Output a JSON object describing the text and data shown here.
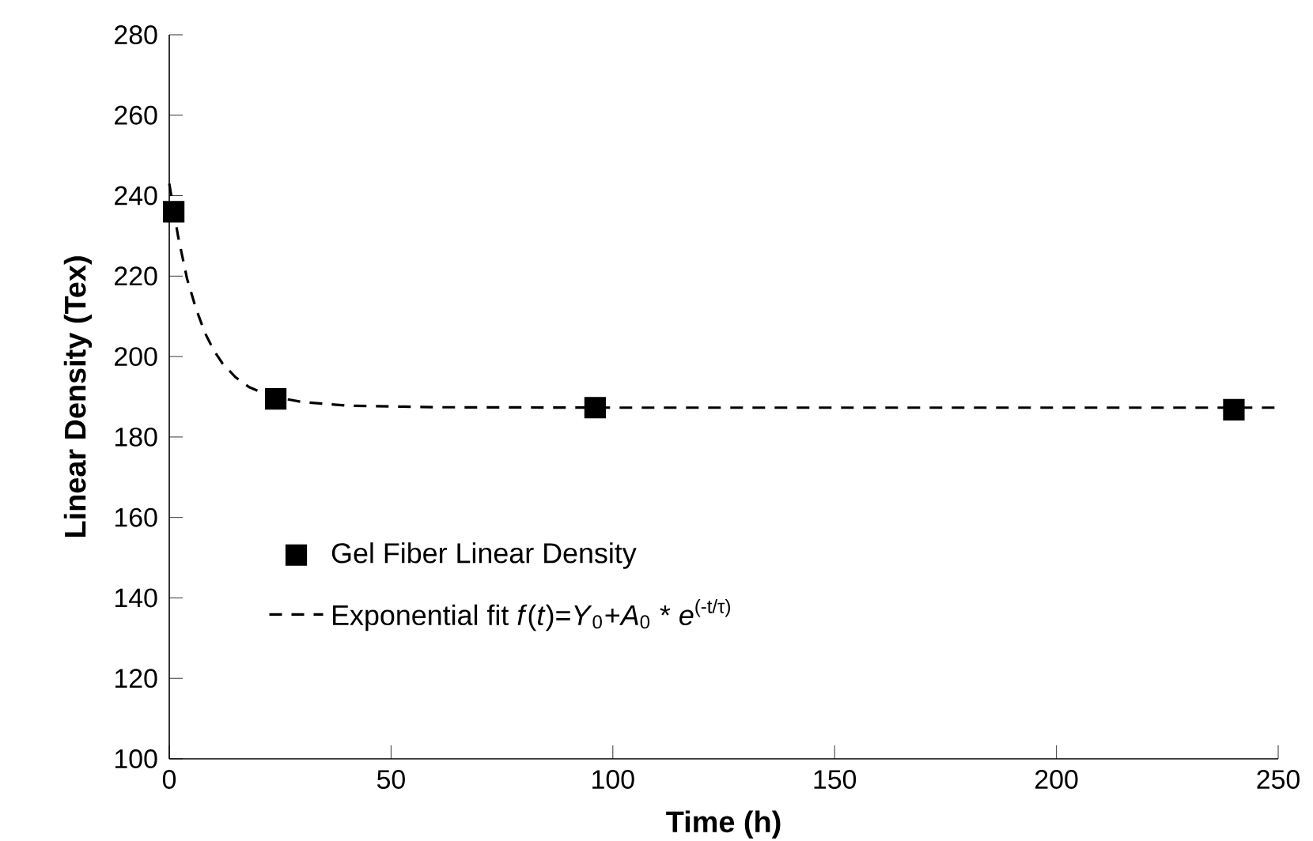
{
  "chart_data": {
    "type": "scatter",
    "xlabel": "Time (h)",
    "ylabel": "Linear Density (Tex)",
    "series": [
      {
        "name": "Gel Fiber Linear Density",
        "color": "#000000",
        "marker": "square",
        "x": [
          1,
          24,
          96,
          240
        ],
        "values": [
          236,
          189.5,
          187.3,
          186.8
        ]
      },
      {
        "name": "Exponential fit  *f*(*t*)=*Y*$_{0}$+*A*$_{0}$ * *e*$^{(-t/τ)}$",
        "type": "line",
        "color": "#000000",
        "line_style": "dashed",
        "x": [
          0,
          2,
          4,
          6,
          8,
          10,
          12,
          15,
          18,
          21,
          24,
          30,
          40,
          60,
          100,
          150,
          200,
          250
        ],
        "values": [
          243,
          229.8,
          219.4,
          212,
          206,
          201.6,
          198.3,
          194.8,
          192.4,
          191,
          189.9,
          188.7,
          187.8,
          187.4,
          187.3,
          187.3,
          187.3,
          187.3
        ]
      }
    ],
    "xlim": [
      0,
      250
    ],
    "ylim": [
      100,
      280
    ],
    "xticks": [
      0,
      50,
      100,
      150,
      200,
      250
    ],
    "yticks": [
      100,
      120,
      140,
      160,
      180,
      200,
      220,
      240,
      260,
      280
    ],
    "legend": "bottom left"
  }
}
